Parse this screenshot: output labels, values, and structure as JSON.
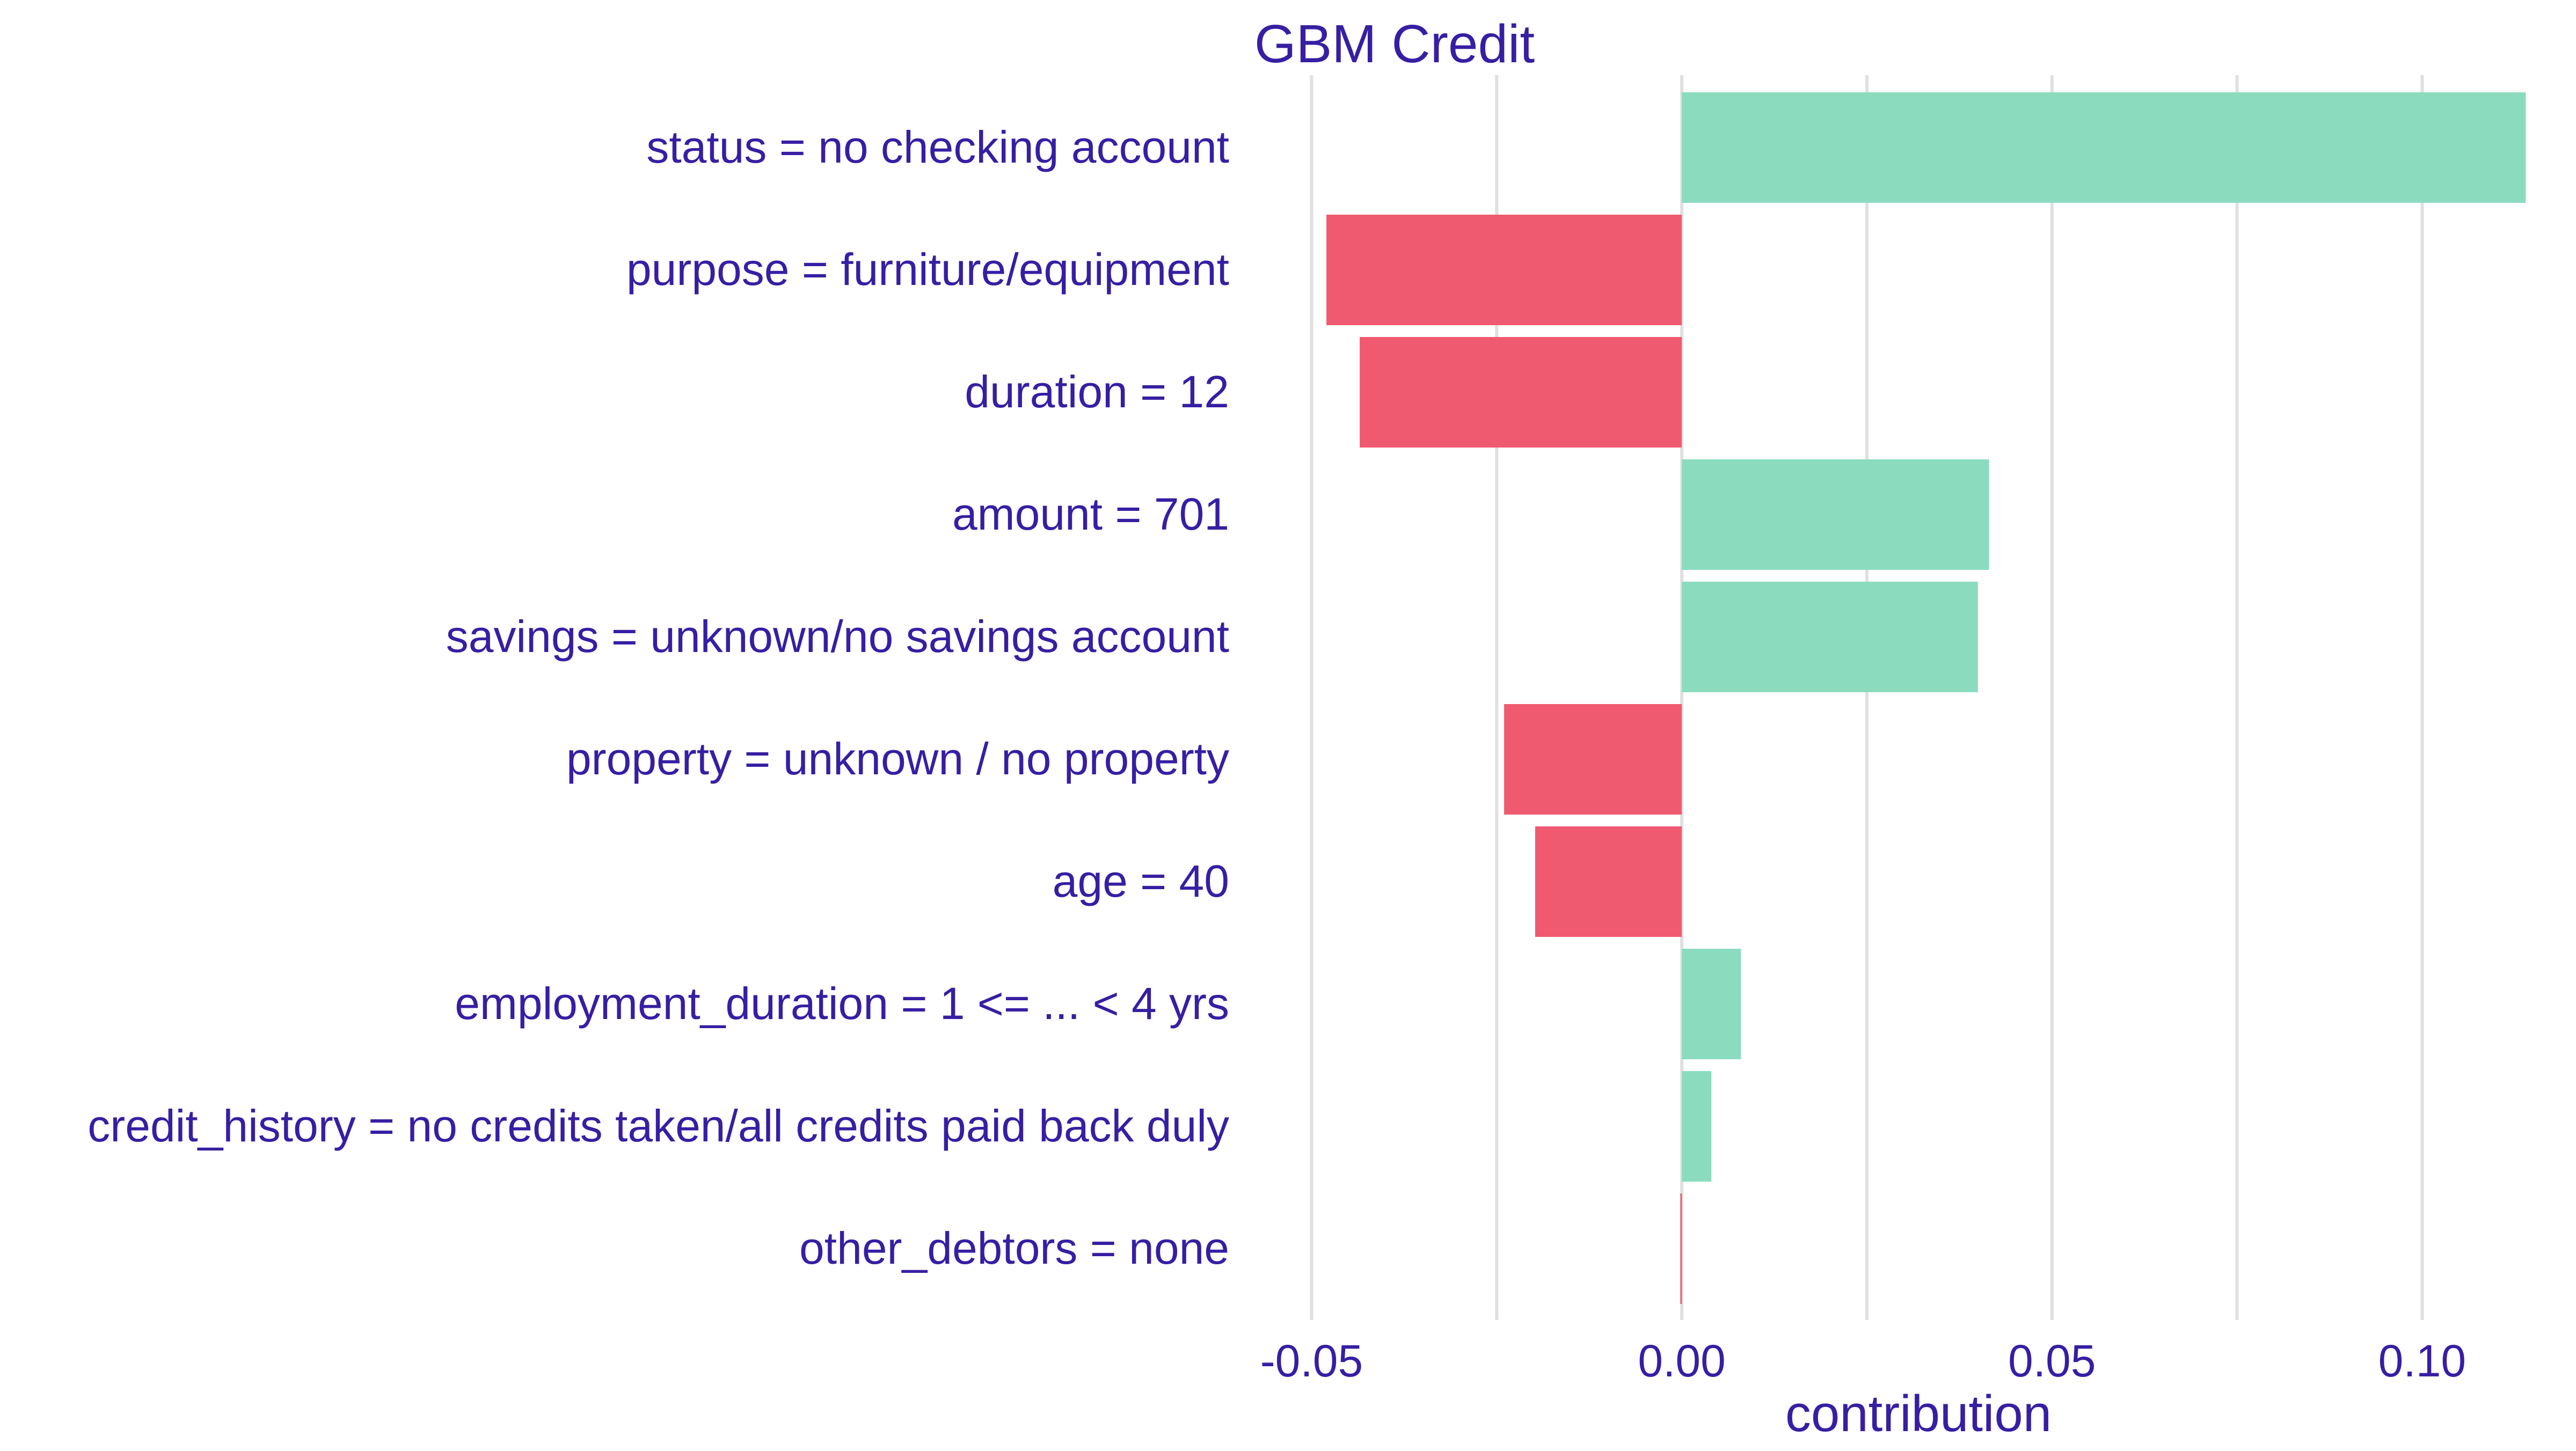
{
  "chart_data": {
    "type": "bar",
    "orientation": "horizontal",
    "title": "GBM Credit",
    "xlabel": "contribution",
    "ylabel": "",
    "xlim": [
      -0.0575,
      0.1165
    ],
    "grid": true,
    "legend": "none",
    "x_ticks": [
      -0.05,
      0.0,
      0.05,
      0.1
    ],
    "x_tick_labels": [
      "-0.05",
      "0.00",
      "0.05",
      "0.10"
    ],
    "minor_gridlines": [
      -0.025,
      0.025,
      0.075
    ],
    "categories": [
      "status = no checking account",
      "purpose = furniture/equipment",
      "duration = 12",
      "amount = 701",
      "savings = unknown/no savings account",
      "property = unknown / no property",
      "age = 40",
      "employment_duration = 1 <= ... < 4 yrs",
      "credit_history = no credits taken/all credits paid back duly",
      "other_debtors = none"
    ],
    "values": [
      0.114,
      -0.048,
      -0.0435,
      0.0415,
      0.04,
      -0.024,
      -0.0198,
      0.008,
      0.004,
      -0.0002
    ],
    "colors": {
      "positive": "#8bdcbe",
      "negative": "#f05a71",
      "text": "#371ea3",
      "grid": "#e0e0e0",
      "baseline": "#d0d0d0"
    }
  }
}
